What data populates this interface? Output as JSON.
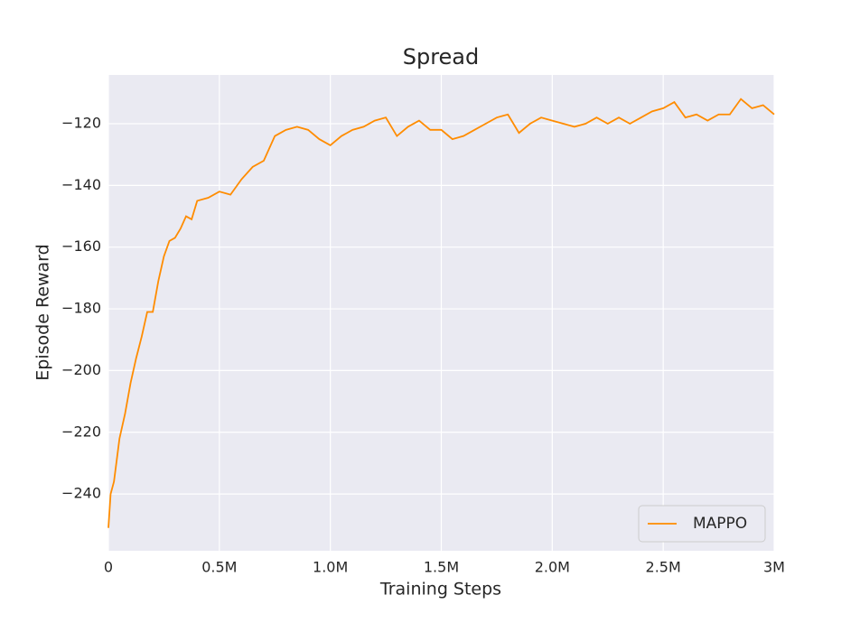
{
  "chart_data": {
    "type": "line",
    "title": "Spread",
    "xlabel": "Training Steps",
    "ylabel": "Episode Reward",
    "x": [
      0,
      10000,
      25000,
      50000,
      75000,
      100000,
      125000,
      150000,
      175000,
      200000,
      225000,
      250000,
      275000,
      300000,
      325000,
      350000,
      375000,
      400000,
      450000,
      500000,
      550000,
      600000,
      650000,
      700000,
      750000,
      800000,
      850000,
      900000,
      950000,
      1000000,
      1050000,
      1100000,
      1150000,
      1200000,
      1250000,
      1300000,
      1350000,
      1400000,
      1450000,
      1500000,
      1550000,
      1600000,
      1650000,
      1700000,
      1750000,
      1800000,
      1850000,
      1900000,
      1950000,
      2000000,
      2050000,
      2100000,
      2150000,
      2200000,
      2250000,
      2300000,
      2350000,
      2400000,
      2450000,
      2500000,
      2550000,
      2600000,
      2650000,
      2700000,
      2750000,
      2800000,
      2850000,
      2900000,
      2950000,
      3000000
    ],
    "series": [
      {
        "name": "MAPPO",
        "color": "#ff8c00",
        "values": [
          -251,
          -240,
          -236,
          -222,
          -214,
          -204,
          -196,
          -189,
          -181,
          -181,
          -171,
          -163,
          -158,
          -157,
          -154,
          -150,
          -151,
          -145,
          -144,
          -142,
          -143,
          -138,
          -134,
          -132,
          -124,
          -122,
          -121,
          -122,
          -125,
          -127,
          -124,
          -122,
          -121,
          -119,
          -118,
          -124,
          -121,
          -119,
          -122,
          -122,
          -125,
          -124,
          -122,
          -120,
          -118,
          -117,
          -123,
          -120,
          -118,
          -119,
          -120,
          -121,
          -120,
          -118,
          -120,
          -118,
          -120,
          -118,
          -116,
          -115,
          -113,
          -118,
          -117,
          -119,
          -117,
          -117,
          -112,
          -115,
          -114,
          -117
        ]
      }
    ],
    "xlim": [
      0,
      3000000
    ],
    "xticks": [
      0,
      {
        "value": 500000,
        "label": "0.5M"
      },
      {
        "value": 1000000,
        "label": "1.0M"
      },
      {
        "value": 1500000,
        "label": "1.5M"
      },
      {
        "value": 2000000,
        "label": "2.0M"
      },
      {
        "value": 2500000,
        "label": "2.5M"
      },
      {
        "value": 3000000,
        "label": "3M"
      }
    ],
    "ylim": [
      -258.4,
      -104.2
    ],
    "yticks": [
      {
        "value": -240,
        "label": "−240"
      },
      {
        "value": -220,
        "label": "−220"
      },
      {
        "value": -200,
        "label": "−200"
      },
      {
        "value": -180,
        "label": "−180"
      },
      {
        "value": -160,
        "label": "−160"
      },
      {
        "value": -140,
        "label": "−140"
      },
      {
        "value": -120,
        "label": "−120"
      }
    ],
    "grid": true,
    "legend": "lower right"
  }
}
